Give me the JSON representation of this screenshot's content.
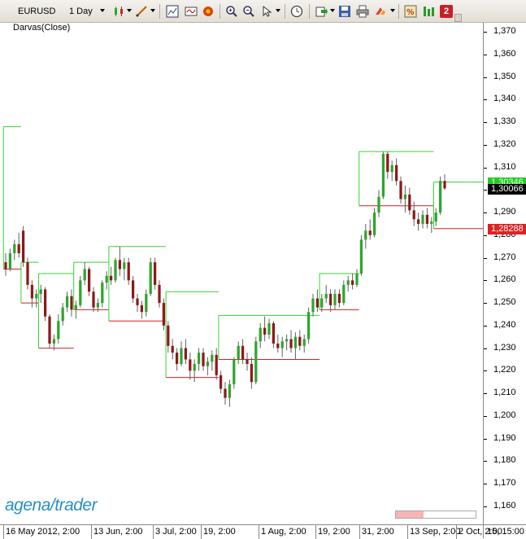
{
  "toolbar": {
    "symbol": "EURUSD",
    "timeframe": "1 Day",
    "badge_number": "2",
    "icons": [
      "instrument-dropdown",
      "timeframe-dropdown",
      "chart-style-icon",
      "drawing-tool-icon",
      "chart-properties-icon",
      "indicator-icon",
      "strategy-icon",
      "zoom-in-icon",
      "zoom-out-icon",
      "cursor-icon",
      "clock-icon",
      "export-icon",
      "save-icon",
      "print-icon",
      "scroll-end-icon",
      "data-box-icon",
      "chart-trader-icon",
      "badge-icon"
    ]
  },
  "indicator_label": "Darvas(Close)",
  "logo": {
    "part1": "agena",
    "part2": "trader"
  },
  "progress": 0.35,
  "colors": {
    "up": "#2ea52e",
    "down": "#8b1a1a",
    "box_top": "#33d633",
    "box_bottom": "#cc2222",
    "last_price_bg": "#000000",
    "top_marker_bg": "#22cc22",
    "bottom_marker_bg": "#dd2222"
  },
  "yaxis": {
    "ticks": [
      "1,370",
      "1,360",
      "1,350",
      "1,340",
      "1,330",
      "1,320",
      "1,310",
      "1,300",
      "1,290",
      "1,280",
      "1,270",
      "1,260",
      "1,250",
      "1,240",
      "1,230",
      "1,220",
      "1,210",
      "1,200",
      "1,190",
      "1,180",
      "1,170",
      "1,160"
    ]
  },
  "price_markers": {
    "top": "1,30346",
    "last": "1,30066",
    "bottom": "1,28288"
  },
  "xaxis": {
    "labels": [
      "16 May 2012, 2:00",
      "13 Jun, 2:00",
      "3 Jul, 2:00",
      "19, 2:00",
      "1 Aug, 2:00",
      "19, 2:00",
      "31, 2:00",
      "13 Sep, 2:00",
      "2 Oct, 2:00"
    ],
    "corner": "15, 15:00"
  },
  "chart_data": {
    "type": "candlestick",
    "symbol": "EURUSD",
    "interval": "1 Day",
    "ylim": [
      1.152,
      1.374
    ],
    "ohlc": [
      [
        1.268,
        1.272,
        1.262,
        1.265
      ],
      [
        1.265,
        1.274,
        1.264,
        1.272
      ],
      [
        1.272,
        1.278,
        1.269,
        1.276
      ],
      [
        1.276,
        1.281,
        1.27,
        1.272
      ],
      [
        1.282,
        1.284,
        1.266,
        1.268
      ],
      [
        1.268,
        1.27,
        1.256,
        1.258
      ],
      [
        1.258,
        1.26,
        1.248,
        1.252
      ],
      [
        1.252,
        1.256,
        1.248,
        1.254
      ],
      [
        1.254,
        1.258,
        1.25,
        1.256
      ],
      [
        1.256,
        1.257,
        1.242,
        1.244
      ],
      [
        1.244,
        1.245,
        1.23,
        1.232
      ],
      [
        1.232,
        1.236,
        1.229,
        1.234
      ],
      [
        1.234,
        1.245,
        1.232,
        1.242
      ],
      [
        1.242,
        1.25,
        1.24,
        1.248
      ],
      [
        1.248,
        1.255,
        1.246,
        1.253
      ],
      [
        1.253,
        1.256,
        1.244,
        1.247
      ],
      [
        1.247,
        1.251,
        1.243,
        1.249
      ],
      [
        1.249,
        1.262,
        1.248,
        1.26
      ],
      [
        1.26,
        1.268,
        1.258,
        1.265
      ],
      [
        1.265,
        1.266,
        1.253,
        1.255
      ],
      [
        1.255,
        1.257,
        1.246,
        1.248
      ],
      [
        1.248,
        1.252,
        1.246,
        1.25
      ],
      [
        1.25,
        1.26,
        1.248,
        1.259
      ],
      [
        1.259,
        1.264,
        1.256,
        1.262
      ],
      [
        1.262,
        1.266,
        1.258,
        1.26
      ],
      [
        1.26,
        1.27,
        1.259,
        1.269
      ],
      [
        1.269,
        1.275,
        1.262,
        1.265
      ],
      [
        1.265,
        1.27,
        1.26,
        1.268
      ],
      [
        1.268,
        1.27,
        1.258,
        1.26
      ],
      [
        1.26,
        1.262,
        1.25,
        1.252
      ],
      [
        1.252,
        1.254,
        1.246,
        1.249
      ],
      [
        1.249,
        1.251,
        1.243,
        1.246
      ],
      [
        1.246,
        1.256,
        1.244,
        1.254
      ],
      [
        1.254,
        1.27,
        1.253,
        1.268
      ],
      [
        1.268,
        1.27,
        1.256,
        1.258
      ],
      [
        1.258,
        1.26,
        1.248,
        1.25
      ],
      [
        1.25,
        1.252,
        1.238,
        1.24
      ],
      [
        1.24,
        1.242,
        1.228,
        1.231
      ],
      [
        1.231,
        1.234,
        1.225,
        1.228
      ],
      [
        1.228,
        1.23,
        1.22,
        1.223
      ],
      [
        1.223,
        1.233,
        1.222,
        1.23
      ],
      [
        1.23,
        1.234,
        1.223,
        1.225
      ],
      [
        1.225,
        1.228,
        1.216,
        1.22
      ],
      [
        1.22,
        1.225,
        1.215,
        1.223
      ],
      [
        1.223,
        1.23,
        1.22,
        1.228
      ],
      [
        1.228,
        1.23,
        1.22,
        1.222
      ],
      [
        1.222,
        1.226,
        1.218,
        1.224
      ],
      [
        1.224,
        1.229,
        1.22,
        1.227
      ],
      [
        1.227,
        1.23,
        1.216,
        1.218
      ],
      [
        1.218,
        1.22,
        1.21,
        1.212
      ],
      [
        1.212,
        1.215,
        1.205,
        1.208
      ],
      [
        1.208,
        1.216,
        1.204,
        1.214
      ],
      [
        1.214,
        1.226,
        1.212,
        1.225
      ],
      [
        1.225,
        1.233,
        1.223,
        1.231
      ],
      [
        1.231,
        1.234,
        1.223,
        1.225
      ],
      [
        1.225,
        1.228,
        1.22,
        1.223
      ],
      [
        1.223,
        1.226,
        1.212,
        1.215
      ],
      [
        1.215,
        1.235,
        1.214,
        1.233
      ],
      [
        1.233,
        1.241,
        1.23,
        1.239
      ],
      [
        1.239,
        1.244,
        1.233,
        1.236
      ],
      [
        1.236,
        1.243,
        1.234,
        1.241
      ],
      [
        1.241,
        1.242,
        1.23,
        1.232
      ],
      [
        1.232,
        1.236,
        1.228,
        1.23
      ],
      [
        1.23,
        1.235,
        1.226,
        1.233
      ],
      [
        1.233,
        1.236,
        1.229,
        1.234
      ],
      [
        1.234,
        1.238,
        1.228,
        1.23
      ],
      [
        1.23,
        1.237,
        1.225,
        1.235
      ],
      [
        1.235,
        1.238,
        1.229,
        1.231
      ],
      [
        1.231,
        1.236,
        1.228,
        1.234
      ],
      [
        1.234,
        1.248,
        1.232,
        1.246
      ],
      [
        1.246,
        1.254,
        1.244,
        1.252
      ],
      [
        1.252,
        1.256,
        1.246,
        1.248
      ],
      [
        1.248,
        1.254,
        1.246,
        1.252
      ],
      [
        1.252,
        1.258,
        1.25,
        1.254
      ],
      [
        1.254,
        1.256,
        1.246,
        1.249
      ],
      [
        1.249,
        1.256,
        1.247,
        1.254
      ],
      [
        1.254,
        1.256,
        1.248,
        1.25
      ],
      [
        1.25,
        1.26,
        1.249,
        1.258
      ],
      [
        1.258,
        1.262,
        1.255,
        1.26
      ],
      [
        1.26,
        1.263,
        1.256,
        1.258
      ],
      [
        1.258,
        1.265,
        1.257,
        1.263
      ],
      [
        1.263,
        1.28,
        1.262,
        1.278
      ],
      [
        1.278,
        1.285,
        1.274,
        1.282
      ],
      [
        1.282,
        1.287,
        1.278,
        1.28
      ],
      [
        1.28,
        1.292,
        1.279,
        1.29
      ],
      [
        1.29,
        1.3,
        1.288,
        1.297
      ],
      [
        1.297,
        1.317,
        1.296,
        1.316
      ],
      [
        1.316,
        1.317,
        1.305,
        1.308
      ],
      [
        1.308,
        1.313,
        1.304,
        1.311
      ],
      [
        1.311,
        1.314,
        1.302,
        1.304
      ],
      [
        1.304,
        1.306,
        1.294,
        1.296
      ],
      [
        1.296,
        1.302,
        1.29,
        1.298
      ],
      [
        1.298,
        1.301,
        1.289,
        1.291
      ],
      [
        1.291,
        1.295,
        1.284,
        1.287
      ],
      [
        1.287,
        1.29,
        1.282,
        1.285
      ],
      [
        1.285,
        1.291,
        1.283,
        1.289
      ],
      [
        1.289,
        1.292,
        1.283,
        1.285
      ],
      [
        1.285,
        1.288,
        1.281,
        1.286
      ],
      [
        1.286,
        1.292,
        1.284,
        1.29
      ],
      [
        1.29,
        1.306,
        1.289,
        1.304
      ],
      [
        1.304,
        1.307,
        1.3,
        1.3007
      ]
    ],
    "darvas_boxes": [
      {
        "start": 0,
        "end": 4,
        "top": 1.328,
        "bottom": 1.265
      },
      {
        "start": 4,
        "end": 8,
        "top": 1.268,
        "bottom": 1.25
      },
      {
        "start": 8,
        "end": 16,
        "top": 1.263,
        "bottom": 1.23
      },
      {
        "start": 16,
        "end": 24,
        "top": 1.268,
        "bottom": 1.247
      },
      {
        "start": 24,
        "end": 37,
        "top": 1.275,
        "bottom": 1.242
      },
      {
        "start": 37,
        "end": 49,
        "top": 1.255,
        "bottom": 1.217
      },
      {
        "start": 49,
        "end": 72,
        "top": 1.2445,
        "bottom": 1.225
      },
      {
        "start": 72,
        "end": 81,
        "top": 1.263,
        "bottom": 1.247
      },
      {
        "start": 81,
        "end": 98,
        "top": 1.317,
        "bottom": 1.293
      },
      {
        "start": 98,
        "end": 106,
        "top": 1.3035,
        "bottom": 1.2829
      }
    ]
  }
}
